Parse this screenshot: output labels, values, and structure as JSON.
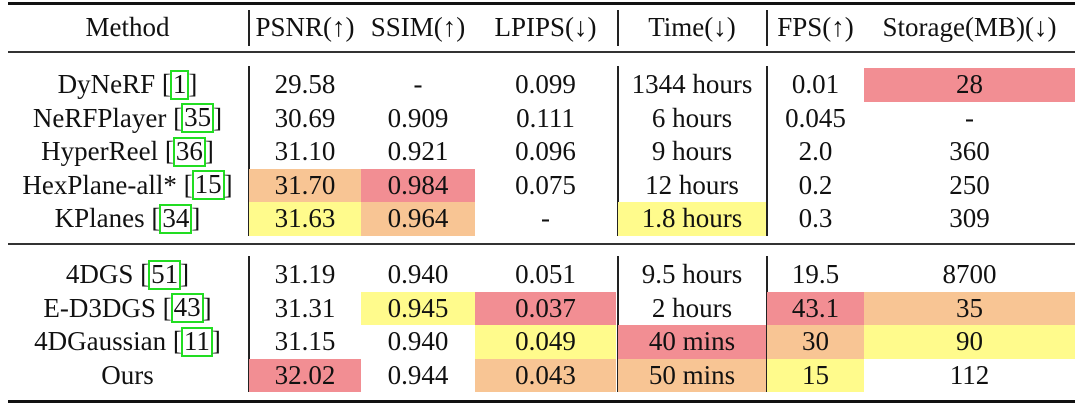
{
  "table": {
    "columns": [
      {
        "key": "method",
        "label": "Method"
      },
      {
        "key": "psnr",
        "label": "PSNR(↑)"
      },
      {
        "key": "ssim",
        "label": "SSIM(↑)"
      },
      {
        "key": "lpips",
        "label": "LPIPS(↓)"
      },
      {
        "key": "time",
        "label": "Time(↓)"
      },
      {
        "key": "fps",
        "label": "FPS(↑)"
      },
      {
        "key": "storage",
        "label": "Storage(MB)(↓)"
      }
    ],
    "highlight_colors": {
      "best": "#F28E93",
      "second": "#F8C594",
      "third": "#FFFB8C",
      "citation_box": "#22DD22"
    },
    "groups": [
      {
        "rows": [
          {
            "method": "DyNeRF",
            "ref": "1",
            "psnr": "29.58",
            "ssim": "-",
            "lpips": "0.099",
            "time": "1344 hours",
            "fps": "0.01",
            "storage": "28",
            "hl": {
              "storage": "red"
            }
          },
          {
            "method": "NeRFPlayer",
            "ref": "35",
            "psnr": "30.69",
            "ssim": "0.909",
            "lpips": "0.111",
            "time": "6 hours",
            "fps": "0.045",
            "storage": "-",
            "hl": {}
          },
          {
            "method": "HyperReel",
            "ref": "36",
            "psnr": "31.10",
            "ssim": "0.921",
            "lpips": "0.096",
            "time": "9 hours",
            "fps": "2.0",
            "storage": "360",
            "hl": {}
          },
          {
            "method": "HexPlane-all*",
            "ref": "15",
            "psnr": "31.70",
            "ssim": "0.984",
            "lpips": "0.075",
            "time": "12 hours",
            "fps": "0.2",
            "storage": "250",
            "hl": {
              "psnr": "orange",
              "ssim": "red"
            }
          },
          {
            "method": "KPlanes",
            "ref": "34",
            "psnr": "31.63",
            "ssim": "0.964",
            "lpips": "-",
            "time": "1.8 hours",
            "fps": "0.3",
            "storage": "309",
            "hl": {
              "psnr": "yellow",
              "ssim": "orange",
              "time": "yellow"
            }
          }
        ]
      },
      {
        "rows": [
          {
            "method": "4DGS",
            "ref": "51",
            "psnr": "31.19",
            "ssim": "0.940",
            "lpips": "0.051",
            "time": "9.5 hours",
            "fps": "19.5",
            "storage": "8700",
            "hl": {}
          },
          {
            "method": "E-D3DGS",
            "ref": "43",
            "psnr": "31.31",
            "ssim": "0.945",
            "lpips": "0.037",
            "time": "2 hours",
            "fps": "43.1",
            "storage": "35",
            "hl": {
              "ssim": "yellow",
              "lpips": "red",
              "fps": "red",
              "storage": "orange"
            }
          },
          {
            "method": "4DGaussian",
            "ref": "11",
            "psnr": "31.15",
            "ssim": "0.940",
            "lpips": "0.049",
            "time": "40 mins",
            "fps": "30",
            "storage": "90",
            "hl": {
              "lpips": "yellow",
              "time": "red",
              "fps": "orange",
              "storage": "yellow"
            }
          },
          {
            "method": "Ours",
            "ref": "",
            "psnr": "32.02",
            "ssim": "0.944",
            "lpips": "0.043",
            "time": "50 mins",
            "fps": "15",
            "storage": "112",
            "hl": {
              "psnr": "red",
              "lpips": "orange",
              "time": "orange",
              "fps": "yellow"
            }
          }
        ]
      }
    ]
  }
}
